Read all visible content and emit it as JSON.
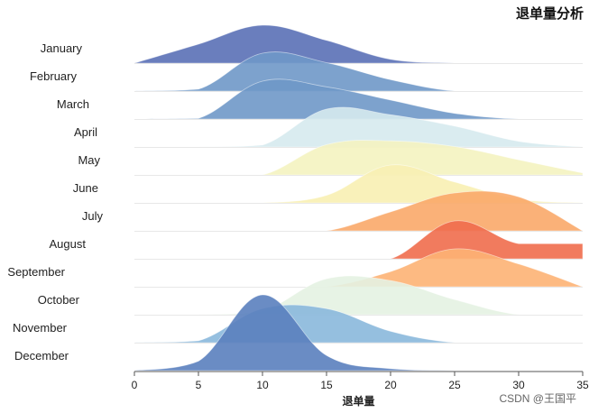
{
  "chart_data": {
    "type": "area",
    "subtype": "ridgeline",
    "title": "退单量分析",
    "xlabel": "退单量",
    "ylabel": "",
    "xlim": [
      0,
      35
    ],
    "xticks": [
      0,
      5,
      10,
      15,
      20,
      25,
      30,
      35
    ],
    "grid": true,
    "categories": [
      "January",
      "February",
      "March",
      "April",
      "May",
      "June",
      "July",
      "August",
      "September",
      "October",
      "November",
      "December"
    ],
    "series": [
      {
        "name": "January",
        "color": "#5a70b6",
        "x": [
          0,
          5,
          10,
          15,
          20,
          25,
          30,
          35
        ],
        "y": [
          0,
          0.5,
          1.0,
          0.6,
          0.1,
          0,
          0,
          0
        ]
      },
      {
        "name": "February",
        "color": "#6f98c8",
        "x": [
          0,
          5,
          10,
          15,
          20,
          25,
          30,
          35
        ],
        "y": [
          0,
          0.05,
          1.0,
          0.75,
          0.3,
          0,
          0,
          0
        ]
      },
      {
        "name": "March",
        "color": "#6f98c8",
        "x": [
          0,
          5,
          10,
          15,
          20,
          25,
          30,
          35
        ],
        "y": [
          0,
          0.02,
          1.0,
          0.85,
          0.5,
          0.15,
          0,
          0
        ]
      },
      {
        "name": "April",
        "color": "#d6eaee",
        "x": [
          0,
          5,
          10,
          15,
          20,
          25,
          30,
          35
        ],
        "y": [
          0,
          0,
          0.05,
          1.0,
          0.85,
          0.55,
          0.15,
          0
        ]
      },
      {
        "name": "May",
        "color": "#f4f3c0",
        "x": [
          0,
          5,
          10,
          15,
          20,
          25,
          30,
          35
        ],
        "y": [
          0,
          0,
          0,
          0.8,
          0.9,
          0.75,
          0.4,
          0.05
        ]
      },
      {
        "name": "June",
        "color": "#f8efb2",
        "x": [
          0,
          5,
          10,
          15,
          20,
          25,
          30,
          35
        ],
        "y": [
          0,
          0,
          0,
          0.2,
          1.0,
          0.55,
          0.1,
          0
        ]
      },
      {
        "name": "July",
        "color": "#faa869",
        "x": [
          0,
          5,
          10,
          15,
          20,
          25,
          30,
          35
        ],
        "y": [
          0,
          0,
          0,
          0,
          0.5,
          1.0,
          0.9,
          0
        ]
      },
      {
        "name": "August",
        "color": "#ef6d4c",
        "x": [
          0,
          5,
          10,
          15,
          20,
          25,
          30,
          35
        ],
        "y": [
          0,
          0,
          0,
          0,
          0,
          1.0,
          0.4,
          0.4
        ]
      },
      {
        "name": "September",
        "color": "#fdb274",
        "x": [
          0,
          5,
          10,
          15,
          20,
          25,
          30,
          35
        ],
        "y": [
          0,
          0,
          0,
          0,
          0.4,
          1.0,
          0.6,
          0
        ]
      },
      {
        "name": "October",
        "color": "#e4f2e2",
        "x": [
          0,
          5,
          10,
          15,
          20,
          25,
          30,
          35
        ],
        "y": [
          0,
          0,
          0.1,
          0.95,
          0.9,
          0.4,
          0,
          0
        ]
      },
      {
        "name": "November",
        "color": "#8ab8dc",
        "x": [
          0,
          5,
          10,
          15,
          20,
          25,
          30,
          35
        ],
        "y": [
          0,
          0.05,
          0.9,
          0.9,
          0.3,
          0,
          0,
          0
        ]
      },
      {
        "name": "December",
        "color": "#5a7fbe",
        "x": [
          0,
          5,
          10,
          15,
          20,
          25,
          30,
          35
        ],
        "y": [
          0,
          0.25,
          2.0,
          0.4,
          0.05,
          0,
          0,
          0
        ]
      }
    ]
  },
  "watermark": "CSDN @王国平"
}
